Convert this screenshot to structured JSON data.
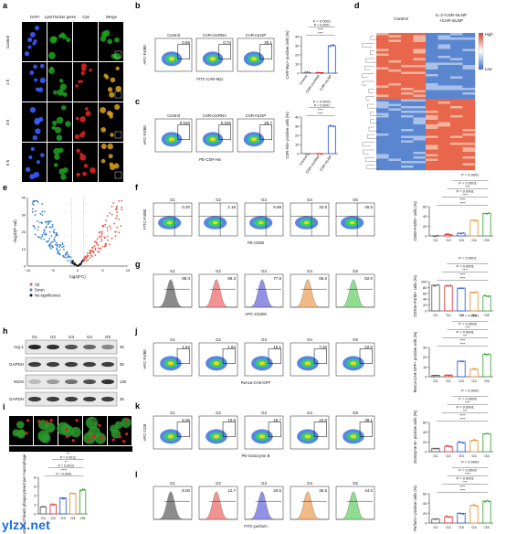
{
  "watermark": "ylzx.net",
  "colors": {
    "red": "#d62728",
    "blue": "#1f4fd8",
    "green": "#2ca02c",
    "orange": "#e8892a",
    "gray": "#777777",
    "pink": "#f08080",
    "lavender": "#7f7fe0",
    "peach": "#f0b070",
    "lightgreen": "#7ed67e"
  },
  "panels": [
    "a",
    "b",
    "c",
    "d",
    "e",
    "f",
    "g",
    "h",
    "i",
    "j",
    "k",
    "l"
  ],
  "a": {
    "cols": [
      "DAPI",
      "LysoTracker green",
      "Cy5",
      "Merge"
    ],
    "col_colors": [
      "#4a6cff",
      "#2ca02c",
      "#d62728",
      "#e8892a"
    ],
    "rows": [
      "Control",
      "1 h",
      "3 h",
      "6 h"
    ]
  },
  "b": {
    "titles": [
      "Control",
      "CAR-circRNA",
      "CAR-mLNP"
    ],
    "values": [
      "0.65",
      "0.74",
      "30.1"
    ],
    "xaxis": "FITC-CAR-Myc",
    "yaxis": "APC-F4/80",
    "bar": {
      "ylabel": "CAR-Myc+ positive cells (%)",
      "cats": [
        "Control",
        "CAR-circRNA",
        "CAR-mLNP"
      ],
      "values": [
        0.6,
        0.7,
        30
      ],
      "ylim": [
        0,
        40
      ],
      "yticks": [
        "0",
        "10",
        "20",
        "30",
        "40"
      ],
      "sig": [
        "****",
        "****",
        "P < 0.0001",
        "P < 0.0001"
      ]
    }
  },
  "c": {
    "titles": [
      "Control",
      "CSR-circRNA",
      "CSR-mLNP"
    ],
    "values": [
      "0.040",
      "0.045",
      "29.7"
    ],
    "xaxis": "PE-CSR-His",
    "yaxis": "APC-F4/80",
    "bar": {
      "ylabel": "CSR-His+ positive cells (%)",
      "cats": [
        "Control",
        "CSR-circRNA",
        "CSR-mLNP"
      ],
      "values": [
        0.05,
        0.05,
        30
      ],
      "ylim": [
        0,
        40
      ],
      "yticks": [
        "0",
        "10",
        "20",
        "30",
        "40"
      ],
      "sig": [
        "****",
        "****",
        "P < 0.0001",
        "P < 0.0001"
      ]
    }
  },
  "d": {
    "left": "Control",
    "right": "IL-2+CSR-mLNP +CAR-mLNP",
    "high": "High",
    "low": "Low"
  },
  "e": {
    "xlabel": "log2(FC)",
    "ylabel": "−log10(P val)",
    "legend": [
      "Up",
      "Down",
      "No significance"
    ],
    "xticks": [
      "−10",
      "−5",
      "0",
      "5",
      "10"
    ],
    "yticks": [
      "0",
      "10",
      "20",
      "30",
      "40"
    ]
  },
  "groups": [
    "G1",
    "G2",
    "G3",
    "G4",
    "G5"
  ],
  "f": {
    "values": [
      "0.20",
      "2.16",
      "5.58",
      "32.5",
      "45.5"
    ],
    "xaxis": "PE-CD80",
    "yaxis": "FITC-F4/80",
    "bar": {
      "ylabel": "CD80+F4/80+ cells (%)",
      "values": [
        0.3,
        2.5,
        5.5,
        32,
        46
      ],
      "ylim": [
        0,
        60
      ],
      "yticks": [
        "0",
        "20",
        "40",
        "60"
      ],
      "sig": [
        "****",
        "****",
        "P < 0.0001",
        "****",
        "P < 0.0001",
        "****",
        "P < 0.0001"
      ]
    }
  },
  "g": {
    "values": [
      "88.3",
      "86.3",
      "77.9",
      "66.2",
      "52.0"
    ],
    "xaxis": "APC-CD206",
    "bar": {
      "ylabel": "CD206+F4/80+ cells (%)",
      "values": [
        88,
        85,
        78,
        64,
        51
      ],
      "ylim": [
        0,
        100
      ],
      "yticks": [
        "0",
        "20",
        "40",
        "60",
        "80",
        "100"
      ],
      "sig": [
        "****",
        "****",
        "P < 0.0001",
        "****",
        "P < 0.0001"
      ]
    }
  },
  "h": {
    "rows": [
      "Arg-1",
      "GAPDH",
      "iNOS",
      "GAPDH"
    ],
    "kda": [
      "35",
      "35",
      "130",
      "35"
    ]
  },
  "i": {
    "groups": [
      "G1",
      "G2",
      "G3",
      "G4",
      "G5"
    ],
    "legend": [
      "Macrophage",
      "Renca-coated bead CA9"
    ],
    "bar": {
      "ylabel": "Number of beads phagocytosed per macrophage",
      "values": [
        1.5,
        2.0,
        3.5,
        4.5,
        5.2
      ],
      "ylim": [
        0,
        8
      ],
      "yticks": [
        "0",
        "2",
        "4",
        "6",
        "8"
      ],
      "sig": [
        "****",
        "P < 0.0001",
        "**",
        "P = 0.0013",
        "**",
        "P = 0.0012"
      ]
    }
  },
  "j": {
    "values": [
      "1.52",
      "1.64",
      "16.1",
      "7.32",
      "22.0"
    ],
    "xaxis": "Renca-CA9-GFP",
    "yaxis": "APC-F4/80",
    "bar": {
      "ylabel": "Renca-CA9-GFP+ positive cells (%)",
      "values": [
        1.5,
        1.7,
        16,
        7.5,
        23
      ],
      "ylim": [
        0,
        30
      ],
      "yticks": [
        "0",
        "10",
        "20",
        "30"
      ],
      "sig": [
        "****",
        "****",
        "P < 0.0001",
        "***",
        "P < 0.0005",
        "****",
        "P < 0.0001"
      ]
    }
  },
  "k": {
    "values": [
      "6.06",
      "10.5",
      "18.7",
      "22.8",
      "38.1"
    ],
    "xaxis": "PE-Granzyme B",
    "yaxis": "APC-CD8",
    "bar": {
      "ylabel": "Granzyme B+ positive cells (%)",
      "values": [
        7,
        11,
        19,
        23,
        37
      ],
      "ylim": [
        0,
        60
      ],
      "yticks": [
        "0",
        "20",
        "40",
        "60"
      ],
      "sig": [
        "****",
        "****",
        "P < 0.0001",
        "***",
        "P = 0.0005",
        "****",
        "P < 0.0001"
      ]
    }
  },
  "l": {
    "values": [
      "8.00",
      "12.7",
      "20.5",
      "36.5",
      "44.0"
    ],
    "xaxis": "FITC-perforin",
    "bar": {
      "ylabel": "Perforin+ positive cells (%)",
      "values": [
        8,
        13,
        20,
        36,
        45
      ],
      "ylim": [
        0,
        60
      ],
      "yticks": [
        "0",
        "20",
        "40",
        "60"
      ],
      "sig": [
        "****",
        "****",
        "P < 0.0001",
        "***",
        "P = 0.0003",
        "****",
        "P < 0.0002"
      ]
    }
  }
}
